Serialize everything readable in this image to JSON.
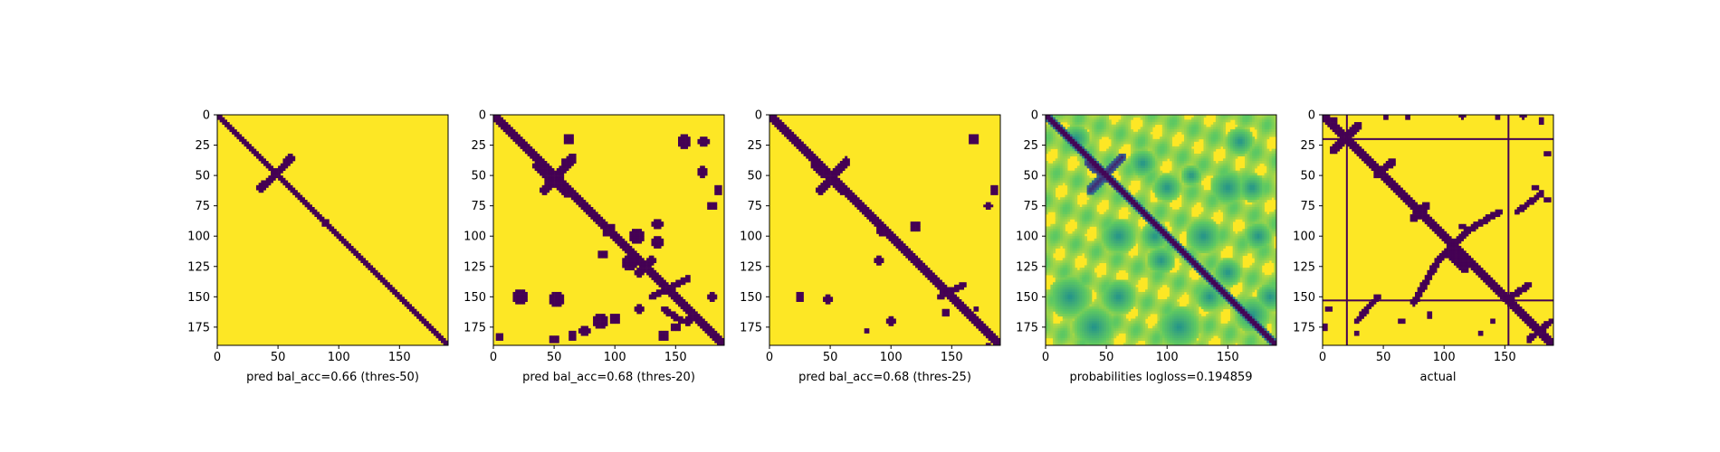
{
  "colors": {
    "background": "#ffffff",
    "yellow": "#fde725",
    "purple": "#440154",
    "green": "#5ec962",
    "teal": "#21918c",
    "blue": "#3b528b"
  },
  "chart_data": [
    {
      "type": "heatmap",
      "kind": "binary",
      "colormap": "viridis",
      "xlabel": "pred bal_acc=0.66 (thres-50)",
      "xlim": [
        0,
        190
      ],
      "ylim": [
        190,
        0
      ],
      "xticks": [
        0,
        50,
        100,
        150
      ],
      "yticks": [
        0,
        25,
        50,
        75,
        100,
        125,
        150,
        175
      ],
      "diagonal": {
        "halfwidth": 1.3
      },
      "segments": [
        {
          "from": [
            52,
            45
          ],
          "to": [
            60,
            36
          ],
          "w": 1.6
        },
        {
          "from": [
            36,
            60
          ],
          "to": [
            45,
            52
          ],
          "w": 1.6
        }
      ],
      "blobs": [
        [
          88,
          90,
          1.5
        ],
        [
          90,
          88,
          1.5
        ],
        [
          119,
          119,
          1.2
        ],
        [
          124,
          124,
          1.0
        ]
      ]
    },
    {
      "type": "heatmap",
      "kind": "binary",
      "colormap": "viridis",
      "xlabel": "pred bal_acc=0.68 (thres-20)",
      "xlim": [
        0,
        190
      ],
      "ylim": [
        190,
        0
      ],
      "xticks": [
        0,
        50,
        100,
        150
      ],
      "yticks": [
        0,
        25,
        50,
        75,
        100,
        125,
        150,
        175
      ],
      "diagonal": {
        "halfwidth": 2.3
      },
      "segments": [
        {
          "from": [
            42,
            62
          ],
          "to": [
            65,
            36
          ],
          "w": 2.0
        },
        {
          "from": [
            36,
            42
          ],
          "to": [
            62,
            65
          ],
          "w": 2.0
        },
        {
          "from": [
            130,
            150
          ],
          "to": [
            160,
            135
          ],
          "w": 1.5
        },
        {
          "from": [
            140,
            160
          ],
          "to": [
            155,
            170
          ],
          "w": 1.5
        }
      ],
      "blobs": [
        [
          62,
          20,
          2.5
        ],
        [
          60,
          40,
          2.5
        ],
        [
          157,
          22,
          3
        ],
        [
          173,
          22,
          2.5
        ],
        [
          172,
          47,
          2.5
        ],
        [
          185,
          62,
          2
        ],
        [
          180,
          75,
          2
        ],
        [
          135,
          90,
          2.5
        ],
        [
          118,
          100,
          3
        ],
        [
          135,
          105,
          2.5
        ],
        [
          95,
          95,
          3
        ],
        [
          90,
          115,
          2
        ],
        [
          112,
          122,
          3
        ],
        [
          120,
          130,
          2
        ],
        [
          22,
          150,
          3
        ],
        [
          52,
          152,
          3
        ],
        [
          130,
          120,
          2
        ],
        [
          160,
          170,
          2
        ],
        [
          180,
          150,
          2
        ],
        [
          88,
          170,
          3
        ],
        [
          100,
          168,
          2.5
        ],
        [
          65,
          182,
          2
        ],
        [
          75,
          178,
          2.5
        ],
        [
          50,
          185,
          2
        ],
        [
          140,
          182,
          2.5
        ],
        [
          150,
          175,
          2
        ],
        [
          5,
          183,
          1.5
        ],
        [
          120,
          160,
          2
        ]
      ]
    },
    {
      "type": "heatmap",
      "kind": "binary",
      "colormap": "viridis",
      "xlabel": "pred bal_acc=0.68 (thres-25)",
      "xlim": [
        0,
        190
      ],
      "ylim": [
        190,
        0
      ],
      "xticks": [
        0,
        50,
        100,
        150
      ],
      "yticks": [
        0,
        25,
        50,
        75,
        100,
        125,
        150,
        175
      ],
      "diagonal": {
        "halfwidth": 2.1
      },
      "segments": [
        {
          "from": [
            42,
            62
          ],
          "to": [
            63,
            38
          ],
          "w": 1.8
        },
        {
          "from": [
            38,
            42
          ],
          "to": [
            62,
            63
          ],
          "w": 1.8
        },
        {
          "from": [
            140,
            150
          ],
          "to": [
            160,
            140
          ],
          "w": 1.5
        }
      ],
      "blobs": [
        [
          168,
          20,
          2.5
        ],
        [
          185,
          62,
          2
        ],
        [
          180,
          75,
          1.8
        ],
        [
          120,
          92,
          2.5
        ],
        [
          92,
          95,
          2.5
        ],
        [
          90,
          120,
          2
        ],
        [
          25,
          150,
          2
        ],
        [
          48,
          152,
          2
        ],
        [
          100,
          170,
          2
        ],
        [
          80,
          178,
          1.5
        ],
        [
          145,
          163,
          1.5
        ],
        [
          170,
          160,
          1.5
        ],
        [
          180,
          190,
          1.5
        ]
      ]
    },
    {
      "type": "heatmap",
      "kind": "probability",
      "colormap": "viridis",
      "xlabel": "probabilities logloss=0.194859",
      "xlim": [
        0,
        190
      ],
      "ylim": [
        190,
        0
      ],
      "xticks": [
        0,
        50,
        100,
        150
      ],
      "yticks": [
        0,
        25,
        50,
        75,
        100,
        125,
        150,
        175
      ],
      "diagonal": {
        "halfwidth": 1.8
      },
      "segments": [
        {
          "from": [
            37,
            62
          ],
          "to": [
            63,
            35
          ],
          "w": 2.6
        },
        {
          "from": [
            35,
            40
          ],
          "to": [
            62,
            62
          ],
          "w": 2.0
        }
      ],
      "blobs": [
        [
          90,
          100,
          4
        ],
        [
          120,
          50,
          3
        ],
        [
          95,
          120,
          4
        ],
        [
          160,
          22,
          4
        ],
        [
          170,
          60,
          4
        ],
        [
          130,
          100,
          5
        ],
        [
          150,
          130,
          4
        ],
        [
          20,
          150,
          6
        ],
        [
          60,
          150,
          5
        ],
        [
          110,
          175,
          6
        ],
        [
          170,
          165,
          5
        ],
        [
          40,
          175,
          6
        ],
        [
          150,
          60,
          5
        ],
        [
          175,
          100,
          4
        ],
        [
          25,
          20,
          4
        ],
        [
          80,
          40,
          4
        ],
        [
          135,
          150,
          4
        ],
        [
          60,
          100,
          5
        ],
        [
          100,
          60,
          4
        ],
        [
          185,
          150,
          4
        ]
      ]
    },
    {
      "type": "heatmap",
      "kind": "binary",
      "colormap": "viridis",
      "xlabel": "actual",
      "xlim": [
        0,
        190
      ],
      "ylim": [
        190,
        0
      ],
      "xticks": [
        0,
        50,
        100,
        150
      ],
      "yticks": [
        0,
        25,
        50,
        75,
        100,
        125,
        150,
        175
      ],
      "diagonal": {
        "halfwidth": 2.3
      },
      "hlines": [
        20,
        153
      ],
      "vlines": [
        20,
        153
      ],
      "segments": [
        {
          "from": [
            8,
            30
          ],
          "to": [
            30,
            8
          ],
          "w": 1.5
        },
        {
          "from": [
            45,
            50
          ],
          "to": [
            58,
            38
          ],
          "w": 1.5
        },
        {
          "from": [
            75,
            85
          ],
          "to": [
            85,
            75
          ],
          "w": 1.5
        },
        {
          "from": [
            95,
            120
          ],
          "to": [
            120,
            95
          ],
          "w": 1.5
        },
        {
          "from": [
            75,
            155
          ],
          "to": [
            95,
            120
          ],
          "w": 1.4
        },
        {
          "from": [
            105,
            115
          ],
          "to": [
            118,
            128
          ],
          "w": 1.5
        },
        {
          "from": [
            120,
            95
          ],
          "to": [
            145,
            80
          ],
          "w": 1.3
        },
        {
          "from": [
            160,
            80
          ],
          "to": [
            180,
            65
          ],
          "w": 1.3
        },
        {
          "from": [
            28,
            170
          ],
          "to": [
            45,
            150
          ],
          "w": 1.2
        },
        {
          "from": [
            155,
            150
          ],
          "to": [
            170,
            140
          ],
          "w": 1.3
        },
        {
          "from": [
            170,
            185
          ],
          "to": [
            188,
            170
          ],
          "w": 1.3
        }
      ],
      "blobs": [
        [
          52,
          2,
          1.5
        ],
        [
          70,
          1,
          1.2
        ],
        [
          115,
          1,
          1.2
        ],
        [
          144,
          2,
          1.2
        ],
        [
          165,
          1,
          1.2
        ],
        [
          180,
          5,
          1.2
        ],
        [
          185,
          32,
          1.5
        ],
        [
          175,
          60,
          1.2
        ],
        [
          185,
          70,
          1.2
        ],
        [
          115,
          92,
          1.2
        ],
        [
          88,
          165,
          1.5
        ],
        [
          65,
          170,
          1.2
        ],
        [
          5,
          160,
          1.5
        ],
        [
          2,
          175,
          1.5
        ],
        [
          28,
          180,
          1.5
        ],
        [
          130,
          180,
          1.2
        ],
        [
          140,
          170,
          1.2
        ],
        [
          10,
          5,
          1.2
        ]
      ]
    }
  ]
}
